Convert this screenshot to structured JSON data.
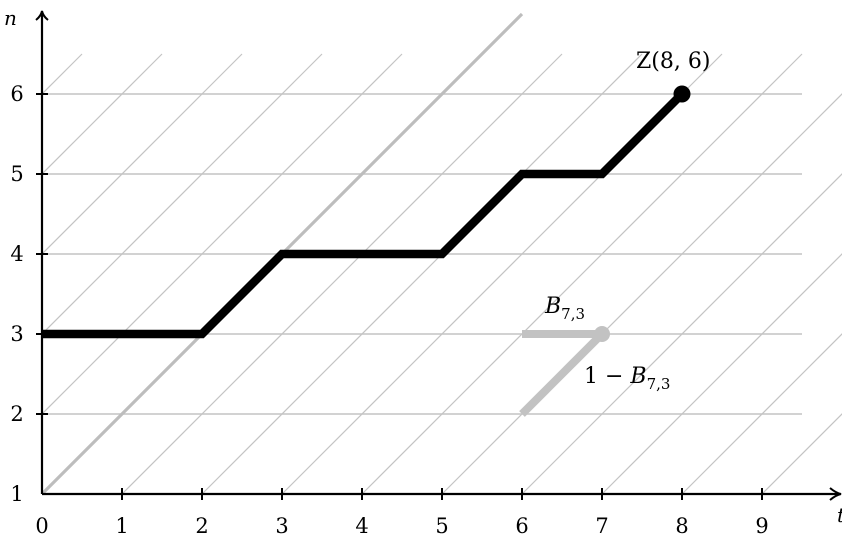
{
  "axes": {
    "x_label": "t",
    "y_label": "n",
    "x_ticks": [
      "0",
      "1",
      "2",
      "3",
      "4",
      "5",
      "6",
      "7",
      "8",
      "9"
    ],
    "y_ticks": [
      "1",
      "2",
      "3",
      "4",
      "5",
      "6"
    ]
  },
  "chart_data": {
    "type": "line",
    "title": "",
    "xlabel": "t",
    "ylabel": "n",
    "xlim": [
      0,
      10
    ],
    "ylim": [
      1,
      6.9
    ],
    "grid": true,
    "series": [
      {
        "values_x": [
          0,
          2,
          3,
          5,
          6,
          7,
          8
        ],
        "values_y": [
          3,
          3,
          4,
          4,
          5,
          5,
          6
        ],
        "color": "#000000"
      }
    ],
    "endpoint": {
      "label": "Z(8, 6)",
      "x": 8,
      "y": 6
    },
    "boundary_line": {
      "from": [
        0,
        1
      ],
      "to": [
        6,
        7
      ],
      "color": "#bdbdbd"
    },
    "transition": {
      "point": [
        7,
        3
      ],
      "horizontal": {
        "from": [
          6,
          3
        ],
        "to": [
          7,
          3
        ],
        "label": "B7,3"
      },
      "diagonal": {
        "from": [
          6,
          2
        ],
        "to": [
          7,
          3
        ],
        "label": "1 − B7,3"
      },
      "color": "#c2c2c2"
    }
  },
  "labels": {
    "endpoint": "Z(8, 6)",
    "b_label_main": "B",
    "b_label_sub": "7,3",
    "one_minus": "1 − ",
    "one_minus_b": "B",
    "one_minus_sub": "7,3"
  },
  "colors": {
    "path": "#000000",
    "grid": "#c4c4c4",
    "boundary": "#bdbdbd",
    "transition": "#c2c2c2"
  }
}
